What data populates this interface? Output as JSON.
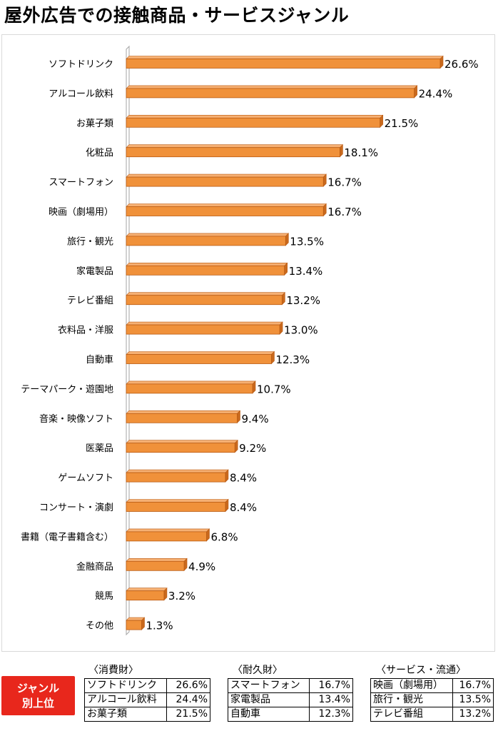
{
  "title": "屋外広告での接触商品・サービスジャンル",
  "chart_data": {
    "type": "bar",
    "orientation": "horizontal",
    "categories": [
      "ソフトドリンク",
      "アルコール飲料",
      "お菓子類",
      "化粧品",
      "スマートフォン",
      "映画（劇場用）",
      "旅行・観光",
      "家電製品",
      "テレビ番組",
      "衣料品・洋服",
      "自動車",
      "テーマパーク・遊園地",
      "音楽・映像ソフト",
      "医薬品",
      "ゲームソフト",
      "コンサート・演劇",
      "書籍（電子書籍含む）",
      "金融商品",
      "競馬",
      "その他"
    ],
    "values": [
      26.6,
      24.4,
      21.5,
      18.1,
      16.7,
      16.7,
      13.5,
      13.4,
      13.2,
      13.0,
      12.3,
      10.7,
      9.4,
      9.2,
      8.4,
      8.4,
      6.8,
      4.9,
      3.2,
      1.3
    ],
    "value_labels": [
      "26.6%",
      "24.4%",
      "21.5%",
      "18.1%",
      "16.7%",
      "16.7%",
      "13.5%",
      "13.4%",
      "13.2%",
      "13.0%",
      "12.3%",
      "10.7%",
      "9.4%",
      "9.2%",
      "8.4%",
      "8.4%",
      "6.8%",
      "4.9%",
      "3.2%",
      "1.3%"
    ],
    "xlim": [
      0,
      26.6
    ],
    "bar_color": "#f0913a",
    "bar_edge_color": "#b95a12",
    "grid": false
  },
  "summary": {
    "badge": "ジャンル\n別上位",
    "groups": [
      {
        "title": "〈消費財〉",
        "rows": [
          [
            "ソフトドリンク",
            "26.6%"
          ],
          [
            "アルコール飲料",
            "24.4%"
          ],
          [
            "お菓子類",
            "21.5%"
          ]
        ]
      },
      {
        "title": "〈耐久財〉",
        "rows": [
          [
            "スマートフォン",
            "16.7%"
          ],
          [
            "家電製品",
            "13.4%"
          ],
          [
            "自動車",
            "12.3%"
          ]
        ]
      },
      {
        "title": "〈サービス・流通〉",
        "rows": [
          [
            "映画（劇場用）",
            "16.7%"
          ],
          [
            "旅行・観光",
            "13.5%"
          ],
          [
            "テレビ番組",
            "13.2%"
          ]
        ]
      }
    ]
  }
}
